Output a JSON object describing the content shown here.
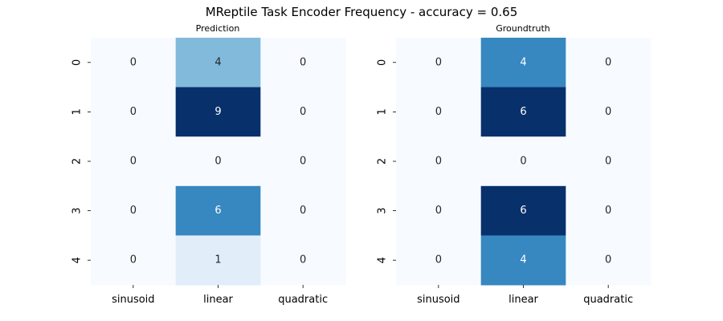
{
  "figure": {
    "title": "MReptile Task Encoder Frequency - accuracy = 0.65"
  },
  "colors": {
    "cmap": "Blues",
    "low": "#f7fbff",
    "high": "#08306b",
    "text_on_light": "#262626",
    "text_on_dark": "#ffffff"
  },
  "chart_data": [
    {
      "type": "heatmap",
      "title": "Prediction",
      "x_tick_labels": [
        "sinusoid",
        "linear",
        "quadratic"
      ],
      "y_tick_labels": [
        "0",
        "1",
        "2",
        "3",
        "4"
      ],
      "values": [
        [
          0,
          4,
          0
        ],
        [
          0,
          9,
          0
        ],
        [
          0,
          0,
          0
        ],
        [
          0,
          6,
          0
        ],
        [
          0,
          1,
          0
        ]
      ],
      "color_range": [
        0,
        9
      ],
      "colorbar": false
    },
    {
      "type": "heatmap",
      "title": "Groundtruth",
      "x_tick_labels": [
        "sinusoid",
        "linear",
        "quadratic"
      ],
      "y_tick_labels": [
        "0",
        "1",
        "2",
        "3",
        "4"
      ],
      "values": [
        [
          0,
          4,
          0
        ],
        [
          0,
          6,
          0
        ],
        [
          0,
          0,
          0
        ],
        [
          0,
          6,
          0
        ],
        [
          0,
          4,
          0
        ]
      ],
      "color_range": [
        0,
        6
      ],
      "colorbar": false
    }
  ]
}
